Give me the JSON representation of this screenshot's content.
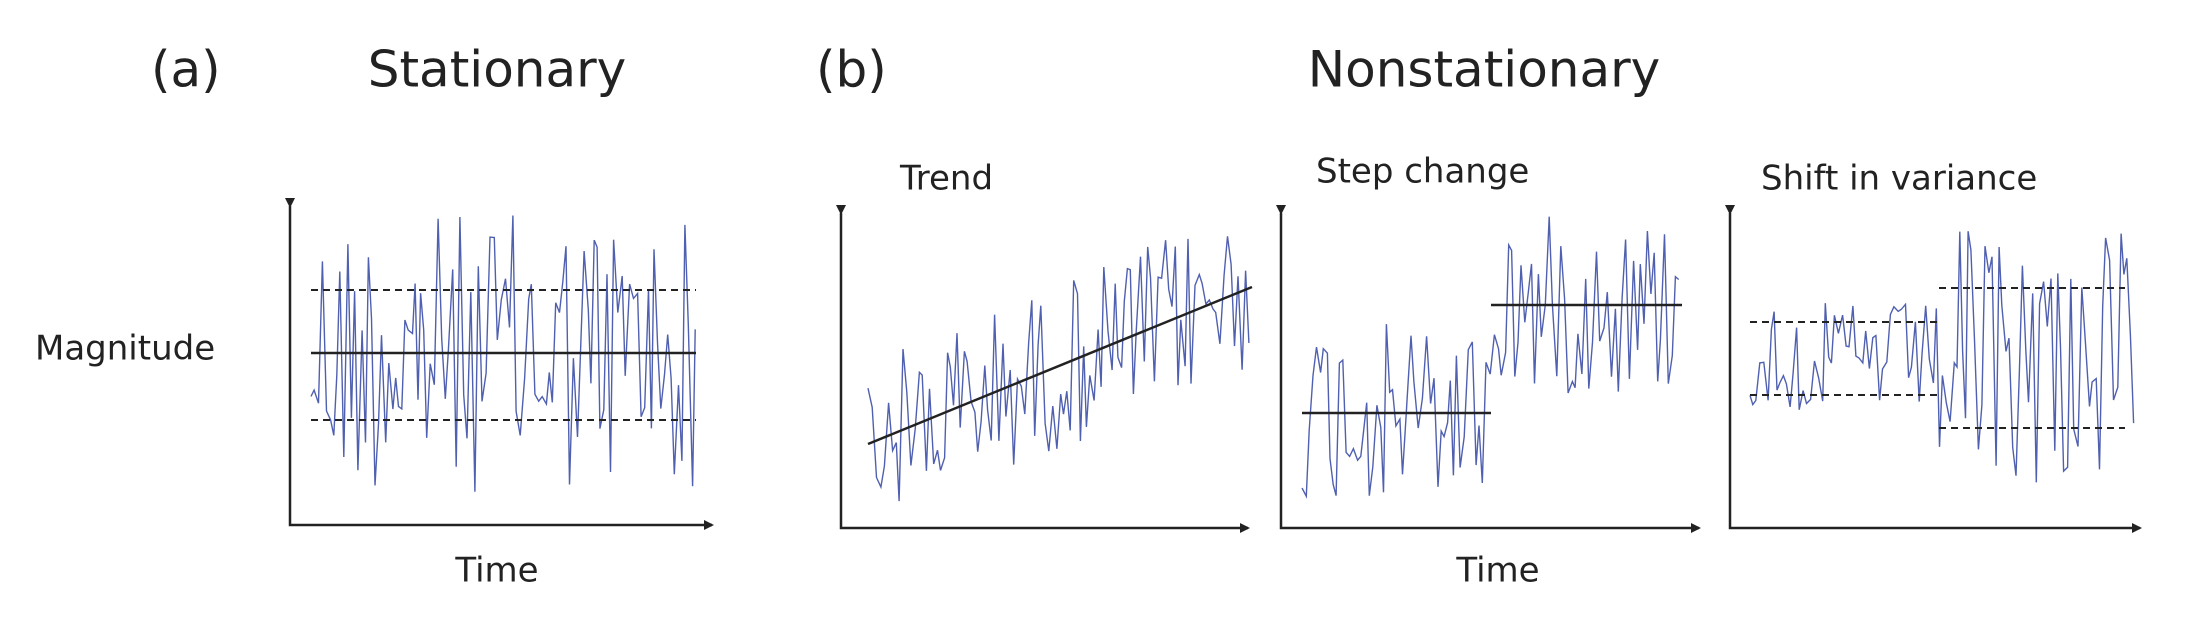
{
  "header": {
    "a_label": "(a)",
    "a_title": "Stationary",
    "b_label": "(b)",
    "b_title": "Nonstationary"
  },
  "panels": {
    "trend": "Trend",
    "step": "Step change",
    "variance": "Shift in variance"
  },
  "axes": {
    "y_label": "Magnitude",
    "x_label_a": "Time",
    "x_label_b": "Time"
  }
}
